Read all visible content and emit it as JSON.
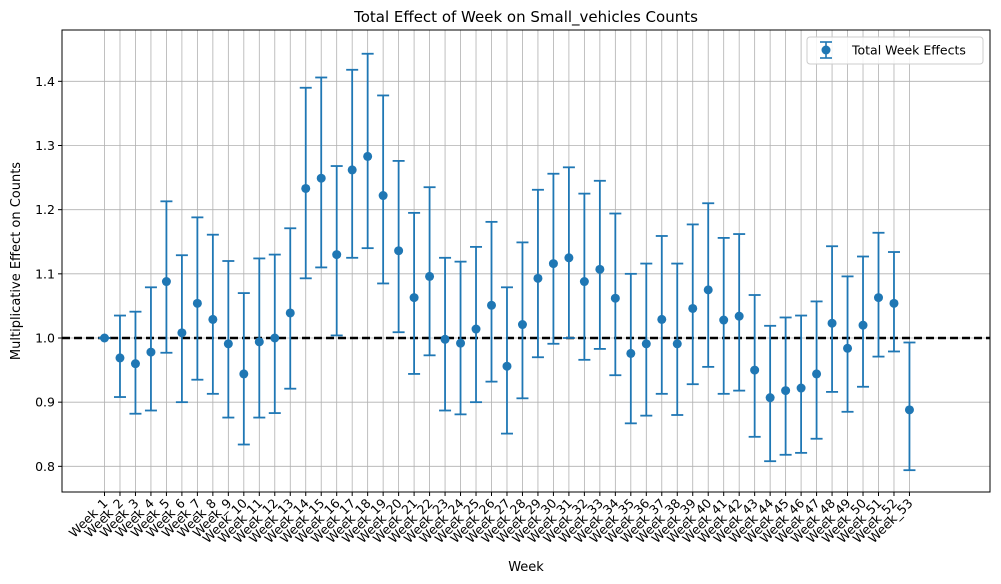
{
  "chart_data": {
    "type": "scatter",
    "title": "Total Effect of Week on Small_vehicles Counts",
    "xlabel": "Week",
    "ylabel": "Multiplicative Effect on Counts",
    "ylim": [
      0.76,
      1.48
    ],
    "yticks": [
      0.8,
      0.9,
      1.0,
      1.1,
      1.2,
      1.3,
      1.4
    ],
    "grid": true,
    "legend_position": "top-right",
    "reference_line": {
      "y": 1.0,
      "style": "dashed",
      "color": "#000000"
    },
    "categories": [
      "Week_1",
      "Week_2",
      "Week_3",
      "Week_4",
      "Week_5",
      "Week_6",
      "Week_7",
      "Week_8",
      "Week_9",
      "Week_10",
      "Week_11",
      "Week_12",
      "Week_13",
      "Week_14",
      "Week_15",
      "Week_16",
      "Week_17",
      "Week_18",
      "Week_19",
      "Week_20",
      "Week_21",
      "Week_22",
      "Week_23",
      "Week_24",
      "Week_25",
      "Week_26",
      "Week_27",
      "Week_28",
      "Week_29",
      "Week_30",
      "Week_31",
      "Week_32",
      "Week_33",
      "Week_34",
      "Week_35",
      "Week_36",
      "Week_37",
      "Week_38",
      "Week_39",
      "Week_40",
      "Week_41",
      "Week_42",
      "Week_43",
      "Week_44",
      "Week_45",
      "Week_46",
      "Week_47",
      "Week_48",
      "Week_49",
      "Week_50",
      "Week_51",
      "Week_52",
      "Week_53"
    ],
    "series": [
      {
        "name": "Total Week Effects",
        "color": "#1f77b4",
        "values": [
          1.0,
          0.969,
          0.96,
          0.978,
          1.088,
          1.008,
          1.054,
          1.029,
          0.991,
          0.944,
          0.994,
          1.0,
          1.039,
          1.233,
          1.249,
          1.13,
          1.262,
          1.283,
          1.222,
          1.136,
          1.063,
          1.096,
          0.998,
          0.992,
          1.014,
          1.051,
          0.956,
          1.021,
          1.093,
          1.116,
          1.125,
          1.088,
          1.107,
          1.062,
          0.976,
          0.991,
          1.029,
          0.991,
          1.046,
          1.075,
          1.028,
          1.034,
          0.95,
          0.907,
          0.918,
          0.922,
          0.944,
          1.023,
          0.984,
          1.02,
          1.063,
          1.054,
          0.888
        ],
        "lower": [
          1.0,
          0.908,
          0.882,
          0.887,
          0.977,
          0.9,
          0.935,
          0.913,
          0.876,
          0.834,
          0.876,
          0.883,
          0.921,
          1.093,
          1.11,
          1.004,
          1.125,
          1.14,
          1.085,
          1.009,
          0.944,
          0.973,
          0.887,
          0.881,
          0.9,
          0.932,
          0.851,
          0.906,
          0.97,
          0.991,
          1.0,
          0.966,
          0.983,
          0.942,
          0.867,
          0.879,
          0.913,
          0.88,
          0.928,
          0.955,
          0.913,
          0.918,
          0.846,
          0.808,
          0.818,
          0.821,
          0.843,
          0.916,
          0.885,
          0.924,
          0.971,
          0.979,
          0.794
        ],
        "upper": [
          1.0,
          1.035,
          1.041,
          1.079,
          1.213,
          1.129,
          1.188,
          1.161,
          1.12,
          1.07,
          1.124,
          1.13,
          1.171,
          1.39,
          1.406,
          1.268,
          1.418,
          1.443,
          1.378,
          1.276,
          1.195,
          1.235,
          1.125,
          1.119,
          1.142,
          1.181,
          1.079,
          1.149,
          1.231,
          1.256,
          1.266,
          1.225,
          1.245,
          1.194,
          1.1,
          1.116,
          1.159,
          1.116,
          1.177,
          1.21,
          1.156,
          1.162,
          1.067,
          1.019,
          1.032,
          1.035,
          1.057,
          1.143,
          1.096,
          1.127,
          1.164,
          1.134,
          0.993
        ]
      }
    ]
  }
}
